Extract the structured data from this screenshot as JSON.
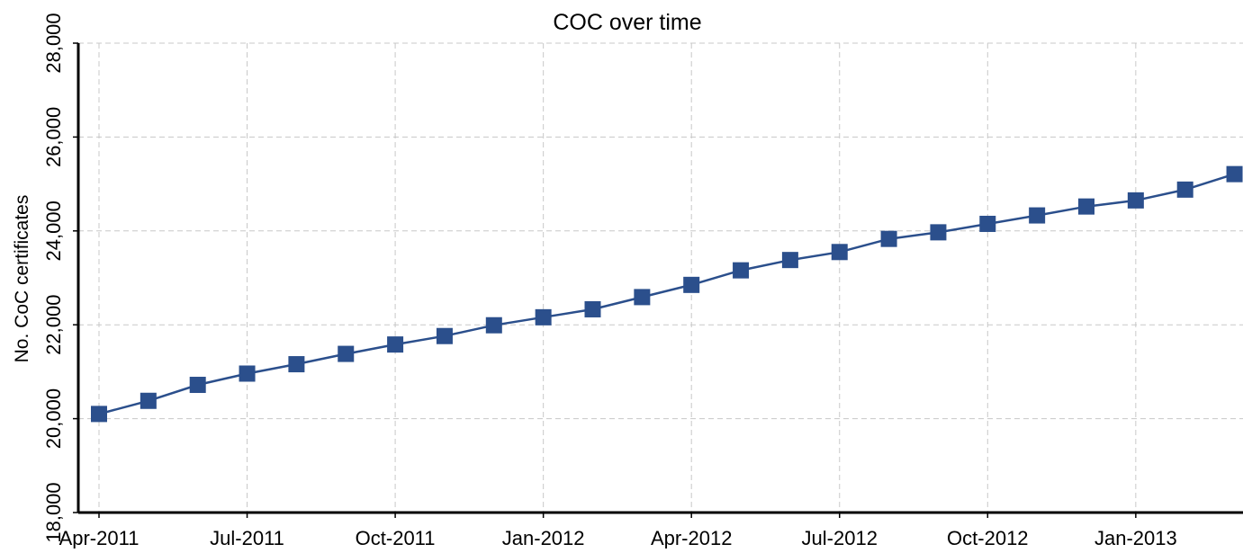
{
  "chart_data": {
    "type": "line",
    "title": "COC over time",
    "xlabel": "",
    "ylabel": "No. CoC certificates",
    "x": [
      "Apr-2011",
      "May-2011",
      "Jun-2011",
      "Jul-2011",
      "Aug-2011",
      "Sep-2011",
      "Oct-2011",
      "Nov-2011",
      "Dec-2011",
      "Jan-2012",
      "Feb-2012",
      "Mar-2012",
      "Apr-2012",
      "May-2012",
      "Jun-2012",
      "Jul-2012",
      "Aug-2012",
      "Sep-2012",
      "Oct-2012",
      "Nov-2012",
      "Dec-2012",
      "Jan-2013",
      "Feb-2013",
      "Mar-2013"
    ],
    "x_tick_labels": [
      "Apr-2011",
      "Jul-2011",
      "Oct-2011",
      "Jan-2012",
      "Apr-2012",
      "Jul-2012",
      "Oct-2012",
      "Jan-2013"
    ],
    "y_tick_labels": [
      "18,000",
      "20,000",
      "22,000",
      "24,000",
      "26,000",
      "28,000"
    ],
    "y_ticks": [
      18000,
      20000,
      22000,
      24000,
      26000,
      28000
    ],
    "ylim": [
      18000,
      28000
    ],
    "grid": true,
    "series": [
      {
        "values": [
          20100,
          20380,
          20720,
          20960,
          21160,
          21380,
          21580,
          21760,
          21990,
          22160,
          22330,
          22590,
          22850,
          23160,
          23380,
          23550,
          23830,
          23970,
          24150,
          24330,
          24520,
          24650,
          24880,
          25210
        ],
        "color": "#2b4f8c",
        "marker": "square"
      }
    ]
  }
}
